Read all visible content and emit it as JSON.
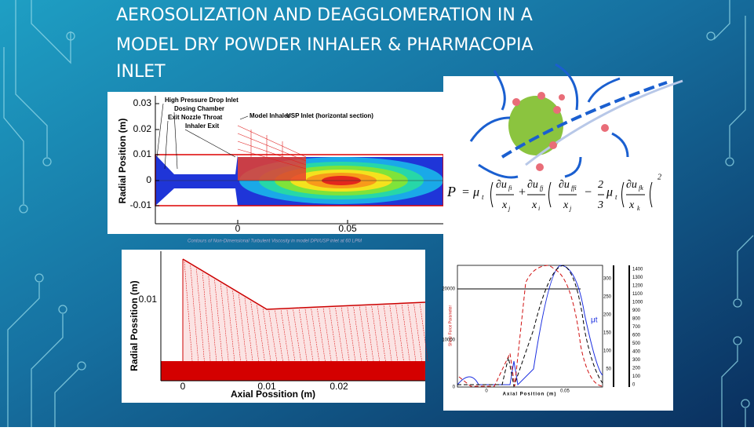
{
  "slide": {
    "title_lines": [
      "AEROSOLIZATION AND DEAGGLOMERATION IN A",
      "MODEL DRY POWDER INHALER & PHARMACOPIA",
      "INLET"
    ]
  },
  "top_plot": {
    "y_label": "Radial Position (m)",
    "y_ticks": [
      "0.03",
      "0.02",
      "0.01",
      "0",
      "-0.01"
    ],
    "x_ticks": [
      "0",
      "0.05"
    ],
    "annotations": [
      "High Pressure Drop Inlet",
      "Dosing Chamber",
      "Exit Nozzle Throat",
      "Inhaler Exit",
      "Model Inhaler",
      "USP Inlet (horizontal section)"
    ],
    "caption": "Contours of Non-Dimensional Turbulent Viscosity in model DPI/USP inlet at 60 LPM"
  },
  "equation": {
    "parts": [
      "P",
      "=",
      "μ",
      "t",
      "∂u",
      "fi",
      "x",
      "j",
      "+",
      "∂u",
      "fj",
      "x",
      "i",
      "∂u",
      "ffi",
      "x",
      "j",
      "−",
      "2",
      "3",
      "μ",
      "t",
      "∂u",
      "fk",
      "x",
      "k",
      "2"
    ]
  },
  "bottom_plot": {
    "y_label": "Radial Possition (m)",
    "x_label": "Axial Possition (m)",
    "y_ticks": [
      "0.01"
    ],
    "x_ticks": [
      "0",
      "0.01",
      "0.02"
    ]
  },
  "line_chart": {
    "x_label": "Axial Position (m)",
    "y_ticks": [
      "20000",
      "10000",
      "0"
    ],
    "x_ticks": [
      "0",
      "0.05"
    ],
    "y2_ticks": [
      "300",
      "250",
      "200",
      "150",
      "100",
      "50"
    ],
    "y3_ticks": [
      "1400",
      "1300",
      "1200",
      "1100",
      "1000",
      "900",
      "800",
      "700",
      "600",
      "500",
      "400",
      "300",
      "200",
      "100",
      "0"
    ],
    "series_label": "μt"
  }
}
